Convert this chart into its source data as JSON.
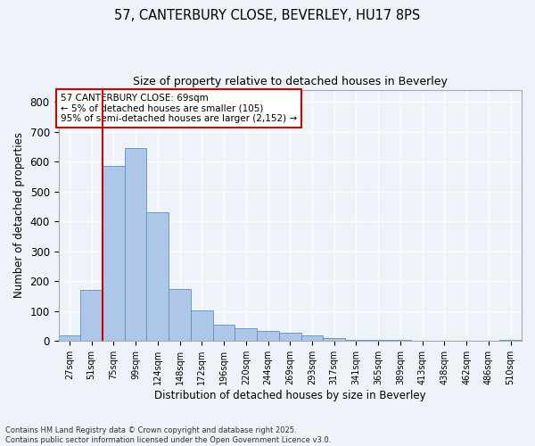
{
  "title_line1": "57, CANTERBURY CLOSE, BEVERLEY, HU17 8PS",
  "title_line2": "Size of property relative to detached houses in Beverley",
  "xlabel": "Distribution of detached houses by size in Beverley",
  "ylabel": "Number of detached properties",
  "bar_categories": [
    "27sqm",
    "51sqm",
    "75sqm",
    "99sqm",
    "124sqm",
    "148sqm",
    "172sqm",
    "196sqm",
    "220sqm",
    "244sqm",
    "269sqm",
    "293sqm",
    "317sqm",
    "341sqm",
    "365sqm",
    "389sqm",
    "413sqm",
    "438sqm",
    "462sqm",
    "486sqm",
    "510sqm"
  ],
  "bar_values": [
    20,
    170,
    585,
    645,
    430,
    175,
    102,
    55,
    42,
    35,
    28,
    18,
    10,
    5,
    4,
    3,
    2,
    1,
    1,
    1,
    5
  ],
  "bar_color": "#aec6e8",
  "bar_edge_color": "#5b8fc9",
  "vline_x_index": 2,
  "vline_color": "#cc0000",
  "annotation_text": "57 CANTERBURY CLOSE: 69sqm\n← 5% of detached houses are smaller (105)\n95% of semi-detached houses are larger (2,152) →",
  "annotation_box_color": "#ffffff",
  "annotation_box_edge": "#cc0000",
  "ylim": [
    0,
    840
  ],
  "yticks": [
    0,
    100,
    200,
    300,
    400,
    500,
    600,
    700,
    800
  ],
  "background_color": "#eef2f9",
  "grid_color": "#ffffff",
  "footer_line1": "Contains HM Land Registry data © Crown copyright and database right 2025.",
  "footer_line2": "Contains public sector information licensed under the Open Government Licence v3.0."
}
